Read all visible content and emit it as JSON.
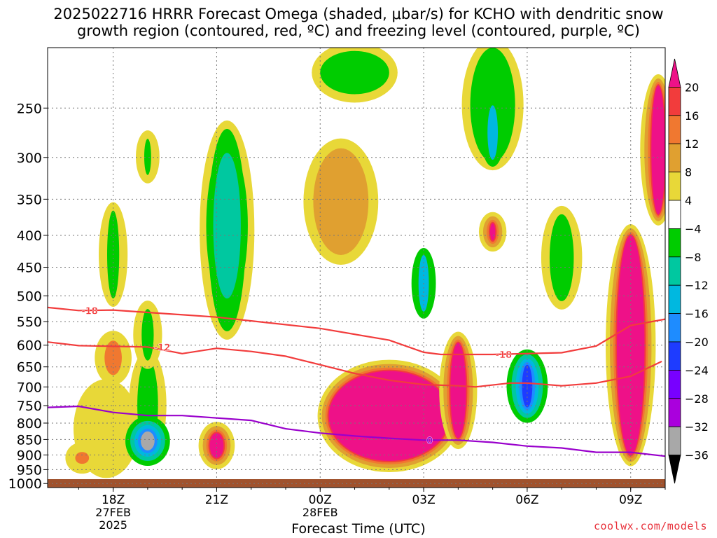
{
  "title_line1": "2025022716 HRRR Forecast Omega (shaded, μbar/s) for KCHO with dendritic snow",
  "title_line2": "growth region (contoured, red, ºC) and freezing level (contoured, purple, ºC)",
  "credit": "coolwx.com/models",
  "chart_data": {
    "type": "time-height cross section (filled contour)",
    "title": "2025022716 HRRR Forecast Omega (shaded, μbar/s) for KCHO with dendritic snow growth region (contoured, red, ºC) and freezing level (contoured, purple, ºC)",
    "xlabel": "Forecast Time (UTC)",
    "ylabel": "",
    "x_ticks": [
      {
        "label": "18Z",
        "sub": [
          "27FEB",
          "2025"
        ],
        "hour": 18
      },
      {
        "label": "21Z",
        "sub": [],
        "hour": 21
      },
      {
        "label": "00Z",
        "sub": [
          "28FEB"
        ],
        "hour": 24
      },
      {
        "label": "03Z",
        "sub": [],
        "hour": 27
      },
      {
        "label": "06Z",
        "sub": [],
        "hour": 30
      },
      {
        "label": "09Z",
        "sub": [],
        "hour": 33
      }
    ],
    "xlim": [
      16.1,
      34.0
    ],
    "y_ticks": [
      250,
      300,
      350,
      400,
      450,
      500,
      550,
      600,
      650,
      700,
      750,
      800,
      850,
      900,
      950,
      1000
    ],
    "ylim_hPa": [
      200,
      1015
    ],
    "y_scale": "log pressure (inverted)",
    "grid": "dotted",
    "colorbar": {
      "labels": [
        "20",
        "16",
        "12",
        "8",
        "4",
        "−4",
        "−8",
        "−12",
        "−16",
        "−20",
        "−24",
        "−28",
        "−32",
        "−36"
      ],
      "bins": [
        {
          "range": ">20",
          "color": "#ee1188"
        },
        {
          "range": "16 to 20",
          "color": "#f23c3c"
        },
        {
          "range": "12 to 16",
          "color": "#f07830"
        },
        {
          "range": "8 to 12",
          "color": "#e0a030"
        },
        {
          "range": "4 to 8",
          "color": "#e8d838"
        },
        {
          "range": "-4 to 4",
          "color": "#ffffff"
        },
        {
          "range": "-8 to -4",
          "color": "#00cc00"
        },
        {
          "range": "-12 to -8",
          "color": "#00c8a0"
        },
        {
          "range": "-16 to -12",
          "color": "#00b8e0"
        },
        {
          "range": "-20 to -16",
          "color": "#1e8cff"
        },
        {
          "range": "-24 to -20",
          "color": "#1e3cff"
        },
        {
          "range": "-28 to -24",
          "color": "#7800ff"
        },
        {
          "range": "-32 to -28",
          "color": "#aa00dd"
        },
        {
          "range": "-36 to -32",
          "color": "#a8a8a8"
        },
        {
          "range": "<-36",
          "color": "#000000"
        }
      ]
    },
    "isotherms": [
      {
        "label": "-18",
        "color": "#f23c3c",
        "points": [
          [
            16.1,
            522
          ],
          [
            17.0,
            528
          ],
          [
            18.0,
            527
          ],
          [
            21.0,
            541
          ],
          [
            24.0,
            564
          ],
          [
            26.0,
            589
          ],
          [
            27.0,
            616
          ],
          [
            27.5,
            621
          ],
          [
            29.0,
            621
          ],
          [
            31.0,
            617
          ],
          [
            32.0,
            602
          ],
          [
            33.0,
            558
          ],
          [
            34.0,
            545
          ]
        ],
        "label_at": [
          17.0,
          528,
          29.0,
          621
        ]
      },
      {
        "label": "-12",
        "color": "#f23c3c",
        "points": [
          [
            16.1,
            593
          ],
          [
            17.0,
            601
          ],
          [
            19.0,
            604
          ],
          [
            20.0,
            619
          ],
          [
            21.0,
            607
          ],
          [
            22.0,
            614
          ],
          [
            23.0,
            625
          ],
          [
            24.0,
            645
          ],
          [
            25.0,
            666
          ],
          [
            26.0,
            683
          ],
          [
            27.0,
            694
          ],
          [
            28.0,
            697
          ],
          [
            28.5,
            700
          ],
          [
            29.5,
            690
          ],
          [
            30.0,
            690
          ],
          [
            31.0,
            697
          ],
          [
            32.0,
            690
          ],
          [
            33.0,
            673
          ],
          [
            33.9,
            637
          ]
        ],
        "label_at": [
          19.1,
          604
        ]
      },
      {
        "label": "0",
        "color": "#9900cc",
        "points": [
          [
            16.1,
            755
          ],
          [
            17.0,
            752
          ],
          [
            18.0,
            769
          ],
          [
            19.0,
            778
          ],
          [
            20.0,
            778
          ],
          [
            22.0,
            792
          ],
          [
            23.0,
            817
          ],
          [
            24.0,
            830
          ],
          [
            25.0,
            839
          ],
          [
            26.0,
            846
          ],
          [
            27.0,
            852
          ],
          [
            28.0,
            852
          ],
          [
            29.0,
            859
          ],
          [
            30.0,
            871
          ],
          [
            31.0,
            877
          ],
          [
            32.0,
            891
          ],
          [
            33.0,
            891
          ],
          [
            34.0,
            904
          ]
        ],
        "label_at": [
          27.0,
          852
        ]
      }
    ],
    "omega_features": [
      {
        "value_range": "4 to 8",
        "hour": 17.8,
        "hPa": 830,
        "extent_h": 1.9,
        "extent_hPa": 300
      },
      {
        "value_range": "12 to 16",
        "hour": 18.0,
        "hPa": 630,
        "extent_h": 0.5,
        "extent_hPa": 80
      },
      {
        "value_range": "12 to 16",
        "hour": 17.1,
        "hPa": 910,
        "extent_h": 0.4,
        "extent_hPa": 40
      },
      {
        "value_range": "-8 to -4",
        "hour": 18.0,
        "hPa": 435,
        "extent_h": 0.35,
        "extent_hPa": 140
      },
      {
        "value_range": "< -32",
        "hour": 19.0,
        "hPa": 855,
        "extent_h": 0.4,
        "extent_hPa": 60
      },
      {
        "value_range": "-8 to -4",
        "hour": 19.0,
        "hPa": 760,
        "extent_h": 0.6,
        "extent_hPa": 260
      },
      {
        "value_range": "-8 to -4",
        "hour": 19.0,
        "hPa": 580,
        "extent_h": 0.35,
        "extent_hPa": 110
      },
      {
        "value_range": "-8 to -4",
        "hour": 19.0,
        "hPa": 300,
        "extent_h": 0.2,
        "extent_hPa": 40
      },
      {
        "value_range": "> 20",
        "hour": 21.0,
        "hPa": 870,
        "extent_h": 0.4,
        "extent_hPa": 80
      },
      {
        "value_range": "-12 to -8",
        "hour": 21.3,
        "hPa": 400,
        "extent_h": 0.8,
        "extent_hPa": 210
      },
      {
        "value_range": "-8 to -4",
        "hour": 21.3,
        "hPa": 420,
        "extent_h": 1.1,
        "extent_hPa": 300
      },
      {
        "value_range": "8 to 12",
        "hour": 24.6,
        "hPa": 360,
        "extent_h": 1.6,
        "extent_hPa": 140
      },
      {
        "value_range": "> 20",
        "hour": 26.0,
        "hPa": 790,
        "extent_h": 3.5,
        "extent_hPa": 260
      },
      {
        "value_range": "> 20",
        "hour": 28.0,
        "hPa": 720,
        "extent_h": 0.45,
        "extent_hPa": 250
      },
      {
        "value_range": "-8 to -4",
        "hour": 25.0,
        "hPa": 220,
        "extent_h": 2.0,
        "extent_hPa": 35
      },
      {
        "value_range": "-16 to -12",
        "hour": 29.0,
        "hPa": 275,
        "extent_h": 0.3,
        "extent_hPa": 55
      },
      {
        "value_range": "-8 to -4",
        "hour": 29.0,
        "hPa": 250,
        "extent_h": 1.3,
        "extent_hPa": 110
      },
      {
        "value_range": "> 20",
        "hour": 29.0,
        "hPa": 395,
        "extent_h": 0.15,
        "extent_hPa": 25
      },
      {
        "value_range": "-16 to -12",
        "hour": 27.0,
        "hPa": 480,
        "extent_h": 0.3,
        "extent_hPa": 100
      },
      {
        "value_range": "-24 to -20",
        "hour": 30.0,
        "hPa": 700,
        "extent_h": 0.3,
        "extent_hPa": 110
      },
      {
        "value_range": "-8 to -4",
        "hour": 31.0,
        "hPa": 440,
        "extent_h": 0.7,
        "extent_hPa": 140
      },
      {
        "value_range": "> 20",
        "hour": 33.0,
        "hPa": 650,
        "extent_h": 0.8,
        "extent_hPa": 500
      },
      {
        "value_range": "> 20",
        "hour": 33.8,
        "hPa": 300,
        "extent_h": 0.4,
        "extent_hPa": 140
      }
    ],
    "ground": {
      "hPa_top": 984,
      "color": "#a0522d"
    }
  }
}
